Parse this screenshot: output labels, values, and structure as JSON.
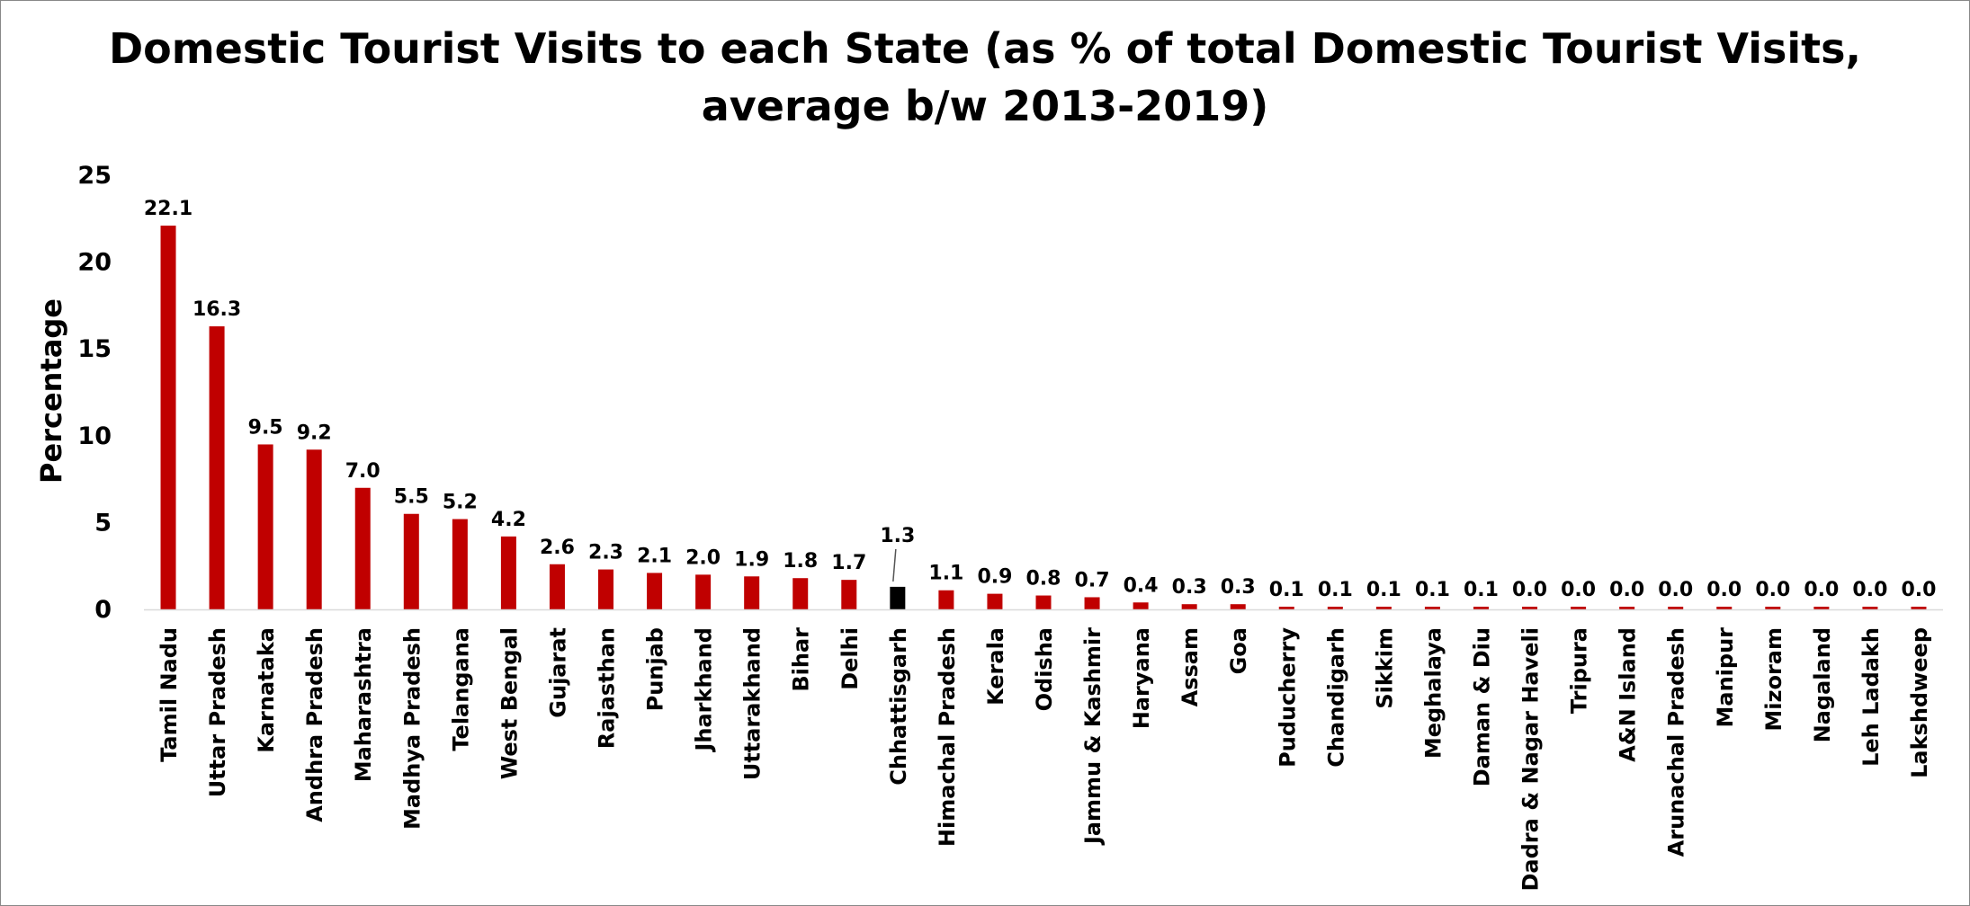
{
  "chart_data": {
    "type": "bar",
    "title_lines": [
      "Domestic Tourist Visits to each State (as % of total Domestic Tourist Visits,",
      "average b/w 2013-2019)"
    ],
    "xlabel": "",
    "ylabel": "Percentage",
    "ylim": [
      0,
      25
    ],
    "yticks": [
      0,
      5,
      10,
      15,
      20,
      25
    ],
    "grid": false,
    "legend": "none",
    "bar_color": "#c00000",
    "highlight_color": "#000000",
    "highlight_category": "Chhattisgarh",
    "categories": [
      "Tamil Nadu",
      "Uttar Pradesh",
      "Karnataka",
      "Andhra Pradesh",
      "Maharashtra",
      "Madhya Pradesh",
      "Telangana",
      "West Bengal",
      "Gujarat",
      "Rajasthan",
      "Punjab",
      "Jharkhand",
      "Uttarakhand",
      "Bihar",
      "Delhi",
      "Chhattisgarh",
      "Himachal Pradesh",
      "Kerala",
      "Odisha",
      "Jammu & Kashmir",
      "Haryana",
      "Assam",
      "Goa",
      "Puducherry",
      "Chandigarh",
      "Sikkim",
      "Meghalaya",
      "Daman & Diu",
      "Dadra & Nagar Haveli",
      "Tripura",
      "A&N Island",
      "Arunachal Pradesh",
      "Manipur",
      "Mizoram",
      "Nagaland",
      "Leh Ladakh",
      "Lakshdweep"
    ],
    "values": [
      22.1,
      16.3,
      9.5,
      9.2,
      7.0,
      5.5,
      5.2,
      4.2,
      2.6,
      2.3,
      2.1,
      2.0,
      1.9,
      1.8,
      1.7,
      1.3,
      1.1,
      0.9,
      0.8,
      0.7,
      0.4,
      0.3,
      0.3,
      0.1,
      0.1,
      0.1,
      0.1,
      0.1,
      0.0,
      0.0,
      0.0,
      0.0,
      0.0,
      0.0,
      0.0,
      0.0,
      0.0
    ],
    "data_labels": [
      "22.1",
      "16.3",
      "9.5",
      "9.2",
      "7.0",
      "5.5",
      "5.2",
      "4.2",
      "2.6",
      "2.3",
      "2.1",
      "2.0",
      "1.9",
      "1.8",
      "1.7",
      "1.3",
      "1.1",
      "0.9",
      "0.8",
      "0.7",
      "0.4",
      "0.3",
      "0.3",
      "0.1",
      "0.1",
      "0.1",
      "0.1",
      "0.1",
      "0.0",
      "0.0",
      "0.0",
      "0.0",
      "0.0",
      "0.0",
      "0.0",
      "0.0",
      "0.0"
    ]
  }
}
